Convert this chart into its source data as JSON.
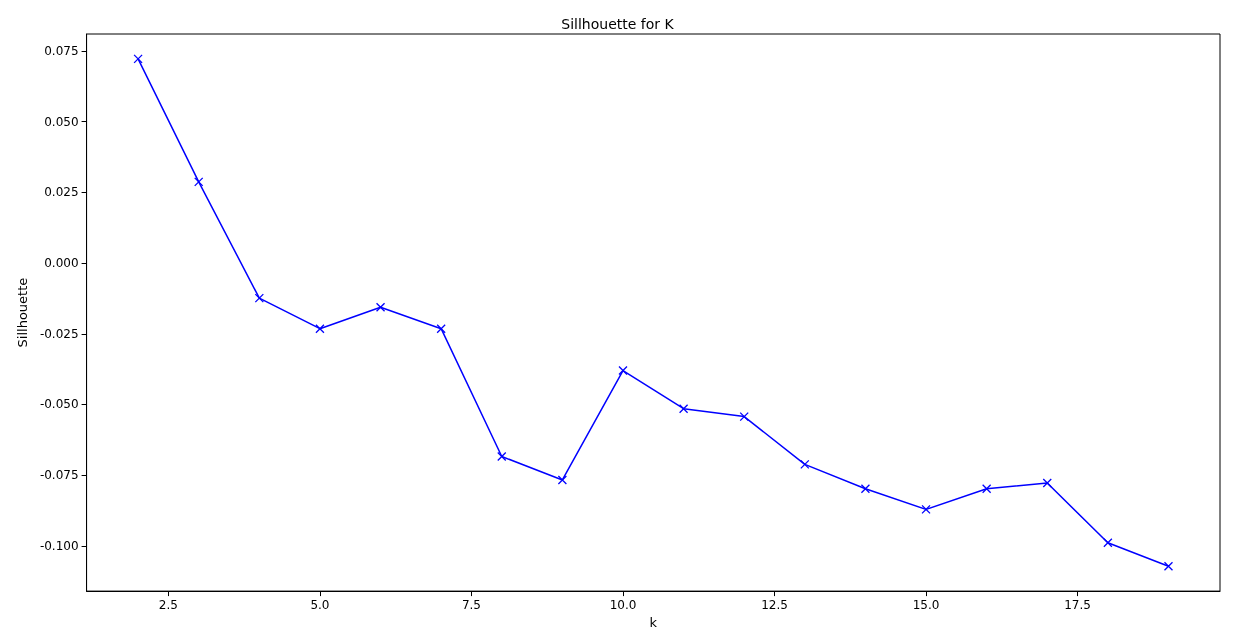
{
  "chart_data": {
    "type": "line",
    "title": "Sillhouette for K",
    "xlabel": "k",
    "ylabel": "Sillhouette",
    "x": [
      2,
      3,
      4,
      5,
      6,
      7,
      8,
      9,
      10,
      11,
      12,
      13,
      14,
      15,
      16,
      17,
      18,
      19
    ],
    "series": [
      {
        "color": "#0000ff",
        "values": [
          0.0722,
          0.0287,
          -0.0124,
          -0.0232,
          -0.0156,
          -0.0232,
          -0.0684,
          -0.0767,
          -0.038,
          -0.0515,
          -0.0543,
          -0.0712,
          -0.0798,
          -0.0871,
          -0.0798,
          -0.0778,
          -0.0989,
          -0.1072
        ]
      }
    ],
    "xlim": [
      1.15,
      19.85
    ],
    "xticks": [
      {
        "value": 2.5,
        "label": "2.5"
      },
      {
        "value": 5,
        "label": "5.0"
      },
      {
        "value": 7.5,
        "label": "7.5"
      },
      {
        "value": 10,
        "label": "10.0"
      },
      {
        "value": 12.5,
        "label": "12.5"
      },
      {
        "value": 15,
        "label": "15.0"
      },
      {
        "value": 17.5,
        "label": "17.5"
      }
    ],
    "ylim": [
      -0.116,
      0.081
    ],
    "yticks": [
      {
        "value": -0.1,
        "label": "-0.100"
      },
      {
        "value": -0.075,
        "label": "-0.075"
      },
      {
        "value": -0.05,
        "label": "-0.050"
      },
      {
        "value": -0.025,
        "label": "-0.025"
      },
      {
        "value": 0,
        "label": "0.000"
      },
      {
        "value": 0.025,
        "label": "0.025"
      },
      {
        "value": 0.05,
        "label": "0.050"
      },
      {
        "value": 0.075,
        "label": "0.075"
      }
    ],
    "grid": false,
    "marker": "cross",
    "line_style": "solid"
  }
}
